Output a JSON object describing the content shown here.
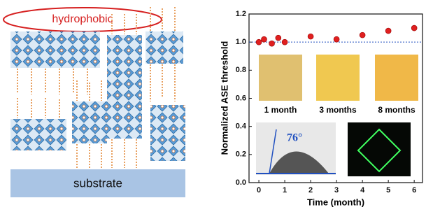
{
  "diagram": {
    "top_label": "hydrophobic",
    "bottom_label": "substrate"
  },
  "chart_data": {
    "type": "scatter",
    "x_label": "Time (month)",
    "y_label": "Normalized ASE threshold",
    "x": [
      0,
      0.2,
      0.5,
      0.75,
      1,
      2,
      3,
      4,
      5,
      6
    ],
    "values": [
      1.0,
      1.02,
      0.99,
      1.03,
      1.0,
      1.04,
      1.02,
      1.05,
      1.08,
      1.1
    ],
    "color": "#e02020",
    "reference_line": 1,
    "xlim": [
      -0.38,
      6.32
    ],
    "ylim": [
      0,
      1.2
    ],
    "xticks": [
      0,
      1,
      2,
      3,
      4,
      5,
      6
    ],
    "yticks": [
      {
        "value": 0,
        "label": "0.0"
      },
      0.2,
      0.4,
      0.6,
      0.8,
      {
        "value": 1,
        "label": "1.0"
      },
      1.2
    ],
    "annotations": [
      "1 month",
      "3 months",
      "8 months",
      "76°"
    ]
  }
}
